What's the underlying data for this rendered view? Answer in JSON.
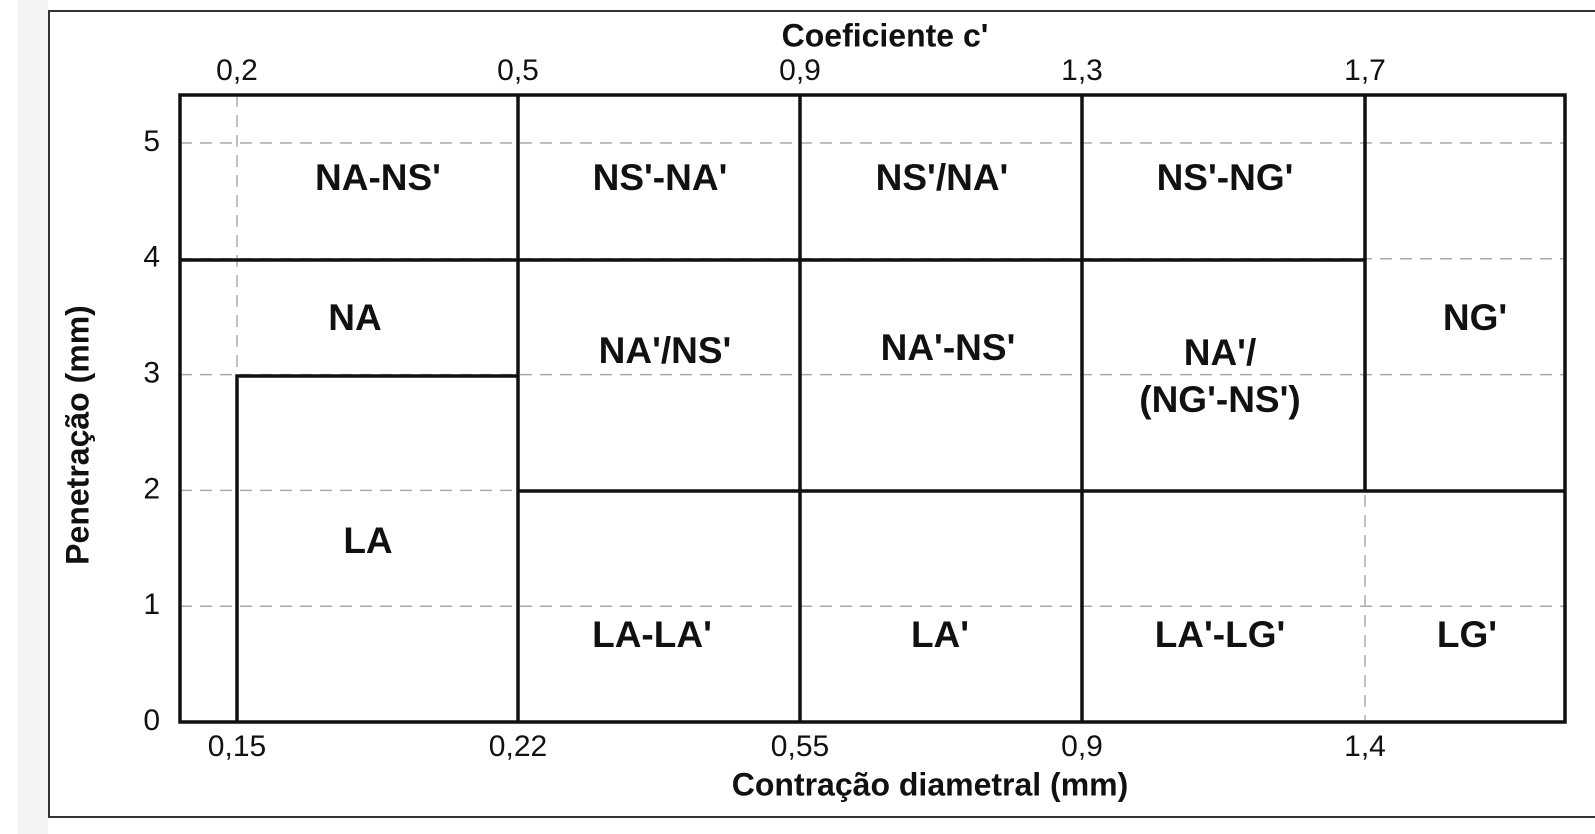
{
  "top_axis": {
    "title": "Coeficiente  c'",
    "ticks": [
      "0,2",
      "0,5",
      "0,9",
      "1,3",
      "1,7"
    ]
  },
  "bottom_axis": {
    "title": "Contração diametral (mm)",
    "ticks": [
      "0,15",
      "0,22",
      "0,55",
      "0,9",
      "1,4"
    ]
  },
  "left_axis": {
    "title": "Penetração (mm)",
    "ticks": [
      0,
      1,
      2,
      3,
      4,
      5
    ]
  },
  "zones": [
    {
      "lines": [
        "NA-NS'"
      ]
    },
    {
      "lines": [
        "NS'-NA'"
      ]
    },
    {
      "lines": [
        "NS'/NA'"
      ]
    },
    {
      "lines": [
        "NS'-NG'"
      ]
    },
    {
      "lines": [
        "NA"
      ]
    },
    {
      "lines": [
        "NA'/NS'"
      ]
    },
    {
      "lines": [
        "NA'-NS'"
      ]
    },
    {
      "lines": [
        "NA'/",
        "(NG'-NS')"
      ]
    },
    {
      "lines": [
        "NG'"
      ]
    },
    {
      "lines": [
        "LA"
      ]
    },
    {
      "lines": [
        "LA-LA'"
      ]
    },
    {
      "lines": [
        "LA'"
      ]
    },
    {
      "lines": [
        "LA'-LG'"
      ]
    },
    {
      "lines": [
        "LG'"
      ]
    }
  ]
}
